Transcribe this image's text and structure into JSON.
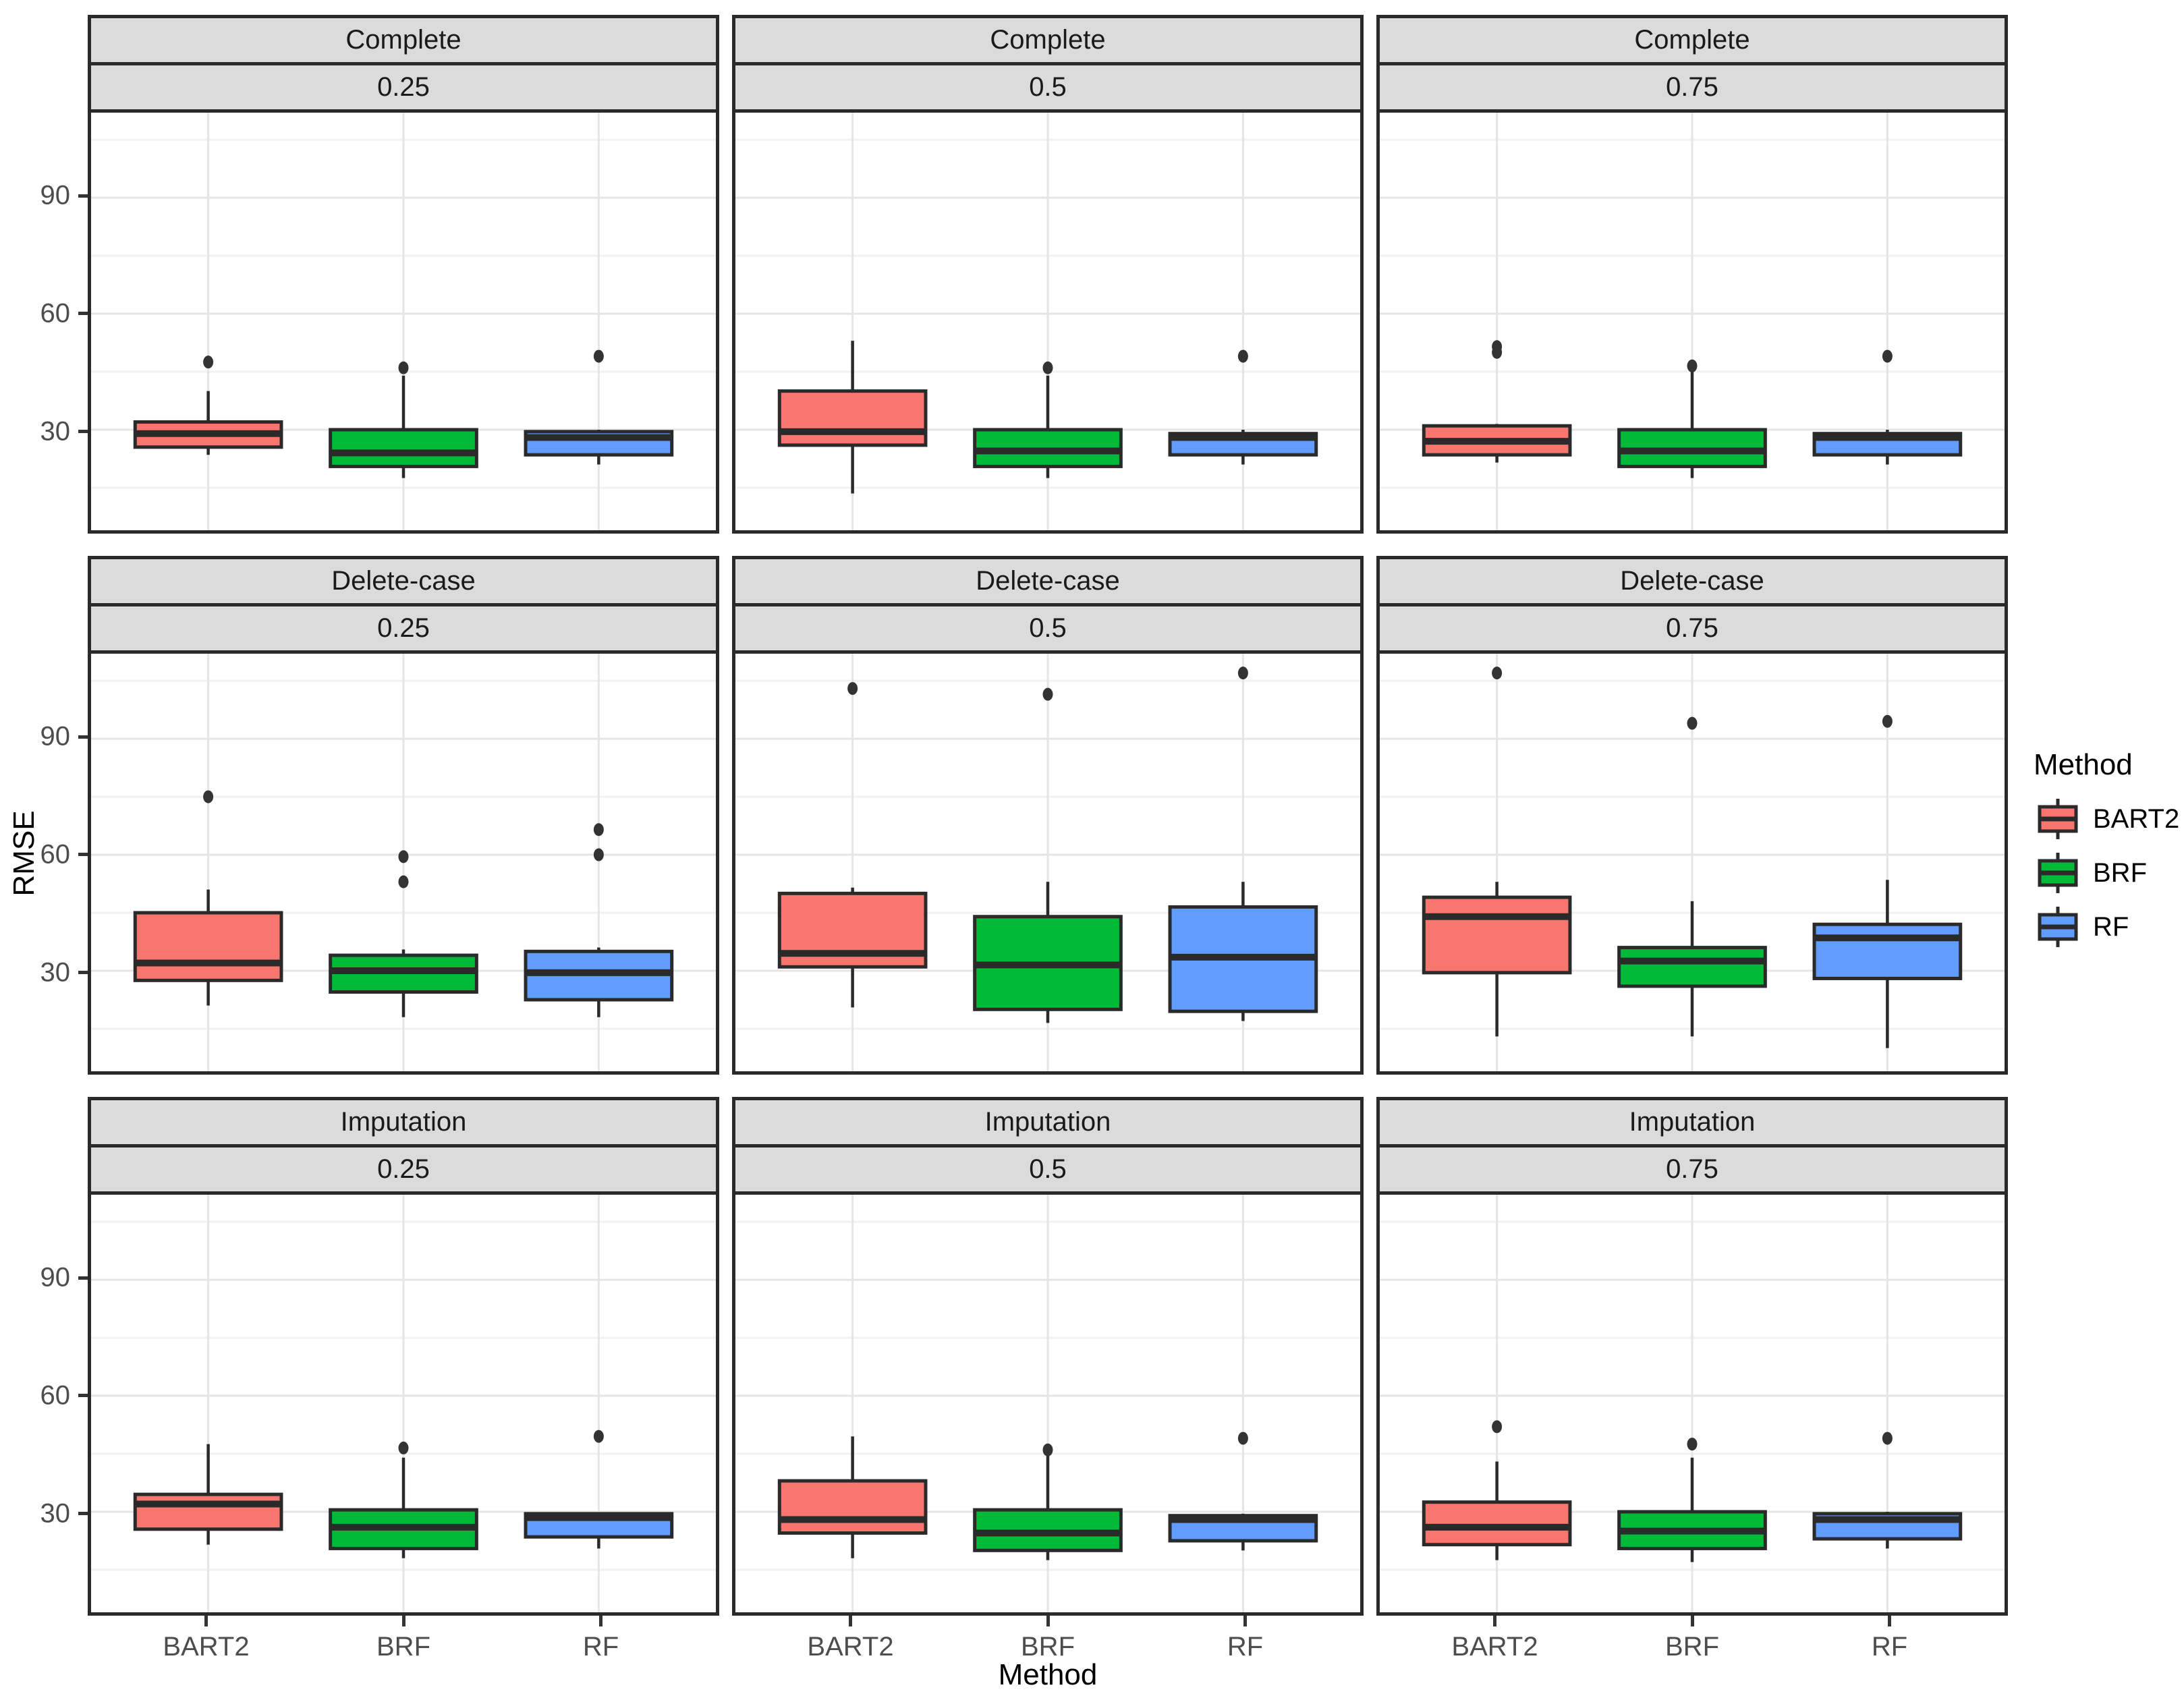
{
  "chart_data": {
    "type": "box",
    "title": "",
    "xlabel": "Method",
    "ylabel": "RMSE",
    "x_categories": [
      "BART2",
      "BRF",
      "RF"
    ],
    "y_ticks": [
      30,
      60,
      90
    ],
    "y_tick_labels": [
      "30",
      "60",
      "90"
    ],
    "y_minor_gridlines": [
      15,
      45,
      75,
      105
    ],
    "ylim": [
      4,
      112
    ],
    "grid": true,
    "facet_rows": [
      "Complete",
      "Delete-case",
      "Imputation"
    ],
    "facet_cols": [
      "0.25",
      "0.5",
      "0.75"
    ],
    "legend": {
      "title": "Method",
      "position": "right",
      "entries": [
        {
          "label": "BART2",
          "color": "#F8766D"
        },
        {
          "label": "BRF",
          "color": "#00BA38"
        },
        {
          "label": "RF",
          "color": "#619CFF"
        }
      ]
    },
    "panels": [
      {
        "row": "Complete",
        "col": "0.25",
        "boxes": [
          {
            "method": "BART2",
            "whisker_low": 23.5,
            "q1": 25.5,
            "median": 29,
            "q3": 32,
            "whisker_high": 40,
            "outliers": [
              47.5
            ]
          },
          {
            "method": "BRF",
            "whisker_low": 17.5,
            "q1": 20.5,
            "median": 24,
            "q3": 30,
            "whisker_high": 44,
            "outliers": [
              46
            ]
          },
          {
            "method": "RF",
            "whisker_low": 21,
            "q1": 23.5,
            "median": 28,
            "q3": 29.5,
            "whisker_high": 30,
            "outliers": [
              49
            ]
          }
        ]
      },
      {
        "row": "Complete",
        "col": "0.5",
        "boxes": [
          {
            "method": "BART2",
            "whisker_low": 13.5,
            "q1": 26,
            "median": 29.5,
            "q3": 40,
            "whisker_high": 53,
            "outliers": []
          },
          {
            "method": "BRF",
            "whisker_low": 17.5,
            "q1": 20.5,
            "median": 24.5,
            "q3": 30,
            "whisker_high": 44,
            "outliers": [
              46
            ]
          },
          {
            "method": "RF",
            "whisker_low": 21,
            "q1": 23.5,
            "median": 28,
            "q3": 29,
            "whisker_high": 30,
            "outliers": [
              49
            ]
          }
        ]
      },
      {
        "row": "Complete",
        "col": "0.75",
        "boxes": [
          {
            "method": "BART2",
            "whisker_low": 21.5,
            "q1": 23.5,
            "median": 27,
            "q3": 31,
            "whisker_high": 31.5,
            "outliers": [
              50,
              51.5
            ]
          },
          {
            "method": "BRF",
            "whisker_low": 17.5,
            "q1": 20.5,
            "median": 24.5,
            "q3": 30,
            "whisker_high": 45,
            "outliers": [
              46.5
            ]
          },
          {
            "method": "RF",
            "whisker_low": 21,
            "q1": 23.5,
            "median": 28,
            "q3": 29,
            "whisker_high": 30,
            "outliers": [
              49
            ]
          }
        ]
      },
      {
        "row": "Delete-case",
        "col": "0.25",
        "boxes": [
          {
            "method": "BART2",
            "whisker_low": 21,
            "q1": 27.5,
            "median": 32,
            "q3": 45,
            "whisker_high": 51,
            "outliers": [
              75
            ]
          },
          {
            "method": "BRF",
            "whisker_low": 18,
            "q1": 24.5,
            "median": 30,
            "q3": 34,
            "whisker_high": 35.5,
            "outliers": [
              53,
              59.5
            ]
          },
          {
            "method": "RF",
            "whisker_low": 18,
            "q1": 22.5,
            "median": 29.5,
            "q3": 35,
            "whisker_high": 36,
            "outliers": [
              60,
              66.5
            ]
          }
        ]
      },
      {
        "row": "Delete-case",
        "col": "0.5",
        "boxes": [
          {
            "method": "BART2",
            "whisker_low": 20.5,
            "q1": 31,
            "median": 34.5,
            "q3": 50,
            "whisker_high": 51.5,
            "outliers": [
              103
            ]
          },
          {
            "method": "BRF",
            "whisker_low": 16.5,
            "q1": 20,
            "median": 31.5,
            "q3": 44,
            "whisker_high": 53,
            "outliers": [
              101.5
            ]
          },
          {
            "method": "RF",
            "whisker_low": 17,
            "q1": 19.5,
            "median": 33.5,
            "q3": 46.5,
            "whisker_high": 53,
            "outliers": [
              107
            ]
          }
        ]
      },
      {
        "row": "Delete-case",
        "col": "0.75",
        "boxes": [
          {
            "method": "BART2",
            "whisker_low": 13,
            "q1": 29.5,
            "median": 44,
            "q3": 49,
            "whisker_high": 53,
            "outliers": [
              107
            ]
          },
          {
            "method": "BRF",
            "whisker_low": 13,
            "q1": 26,
            "median": 32.5,
            "q3": 36,
            "whisker_high": 48,
            "outliers": [
              94
            ]
          },
          {
            "method": "RF",
            "whisker_low": 10,
            "q1": 28,
            "median": 38.5,
            "q3": 42,
            "whisker_high": 53.5,
            "outliers": [
              94.5
            ]
          }
        ]
      },
      {
        "row": "Imputation",
        "col": "0.25",
        "boxes": [
          {
            "method": "BART2",
            "whisker_low": 21.5,
            "q1": 25.5,
            "median": 32,
            "q3": 34.5,
            "whisker_high": 47.5,
            "outliers": []
          },
          {
            "method": "BRF",
            "whisker_low": 18,
            "q1": 20.5,
            "median": 26,
            "q3": 30.5,
            "whisker_high": 44,
            "outliers": [
              46.5
            ]
          },
          {
            "method": "RF",
            "whisker_low": 20.5,
            "q1": 23.5,
            "median": 28.5,
            "q3": 29.5,
            "whisker_high": 29.5,
            "outliers": [
              49.5
            ]
          }
        ]
      },
      {
        "row": "Imputation",
        "col": "0.5",
        "boxes": [
          {
            "method": "BART2",
            "whisker_low": 18,
            "q1": 24.5,
            "median": 28,
            "q3": 38,
            "whisker_high": 49.5,
            "outliers": []
          },
          {
            "method": "BRF",
            "whisker_low": 17.5,
            "q1": 20,
            "median": 24.5,
            "q3": 30.5,
            "whisker_high": 44.5,
            "outliers": [
              46
            ]
          },
          {
            "method": "RF",
            "whisker_low": 20,
            "q1": 22.5,
            "median": 28,
            "q3": 29,
            "whisker_high": 29.5,
            "outliers": [
              49
            ]
          }
        ]
      },
      {
        "row": "Imputation",
        "col": "0.75",
        "boxes": [
          {
            "method": "BART2",
            "whisker_low": 17.5,
            "q1": 21.5,
            "median": 26,
            "q3": 32.5,
            "whisker_high": 43,
            "outliers": [
              52
            ]
          },
          {
            "method": "BRF",
            "whisker_low": 17,
            "q1": 20.5,
            "median": 25,
            "q3": 30,
            "whisker_high": 44,
            "outliers": [
              47.5
            ]
          },
          {
            "method": "RF",
            "whisker_low": 20.5,
            "q1": 23,
            "median": 28,
            "q3": 29.5,
            "whisker_high": 30,
            "outliers": [
              49
            ]
          }
        ]
      }
    ]
  },
  "colors": {
    "box_border": "#2A2A2A",
    "median": "#2A2A2A",
    "whisker": "#2A2A2A",
    "outlier": "#333333",
    "grid_major": "#E5E5E5",
    "grid_minor": "#F1F1F1",
    "strip_bg": "#DBDBDB",
    "panel_bg": "#FFFFFF",
    "tick_label": "#4D4D4D",
    "axis_title": "#000000"
  }
}
